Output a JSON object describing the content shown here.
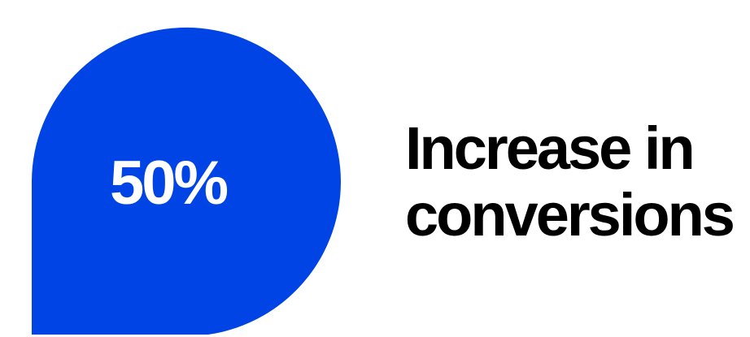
{
  "stat": {
    "value": "50%",
    "color": "#0044E6"
  },
  "headline": {
    "line1": "Increase in",
    "line2": "conversions"
  }
}
